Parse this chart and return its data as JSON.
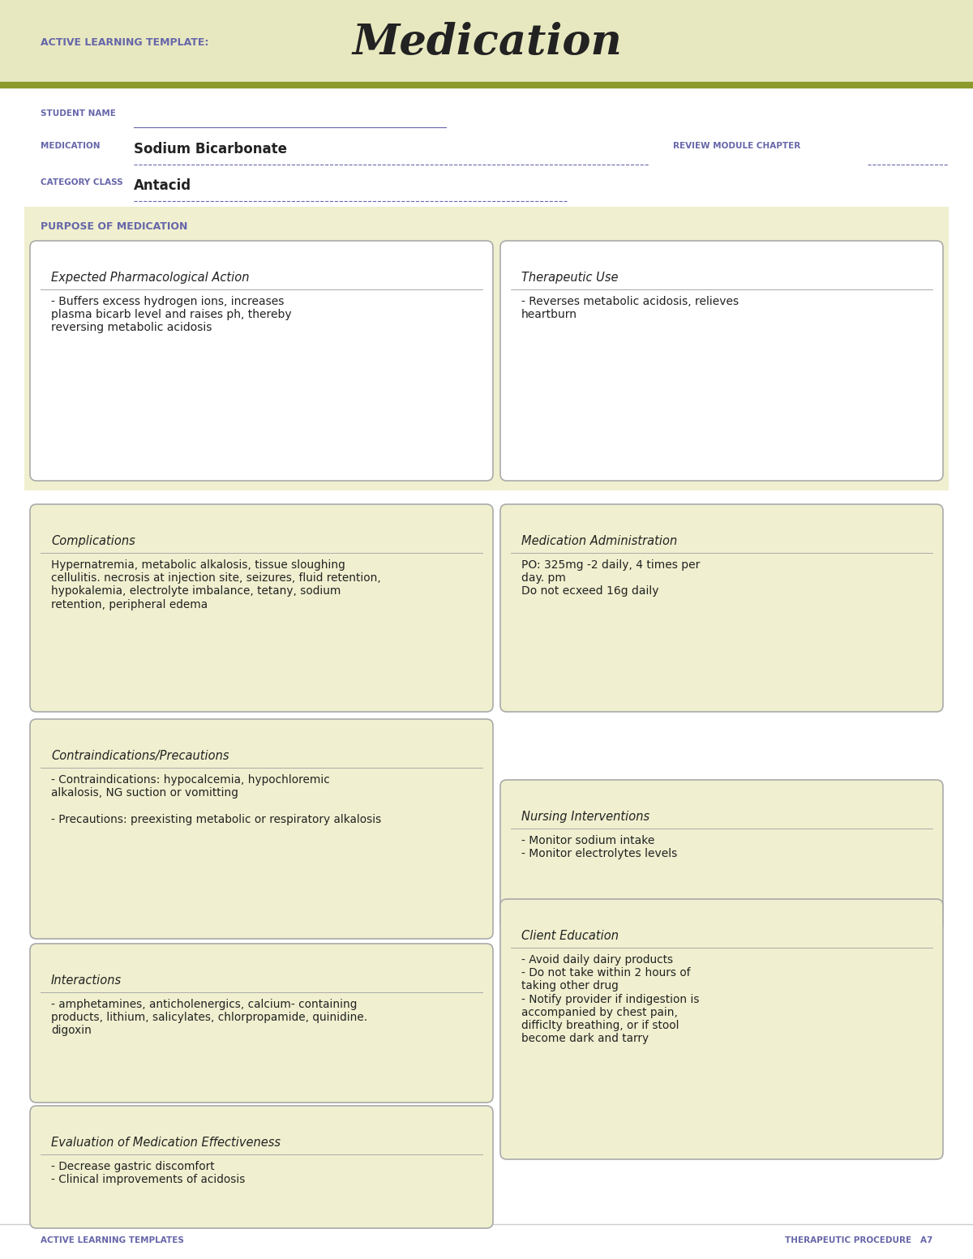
{
  "bg_color": "#f5f5dc",
  "white_bg": "#ffffff",
  "header_bg": "#e8e8c0",
  "box_bg": "#f0f0d0",
  "border_color": "#aaaaaa",
  "olive_line": "#8b9a2a",
  "title_label": "ACTIVE LEARNING TEMPLATE:",
  "title_main": "Medication",
  "label_color": "#6666aa",
  "text_color": "#222222",
  "student_name_label": "STUDENT NAME",
  "medication_label": "MEDICATION",
  "medication_value": "Sodium Bicarbonate",
  "review_label": "REVIEW MODULE CHAPTER",
  "category_label": "CATEGORY CLASS",
  "category_value": "Antacid",
  "purpose_label": "PURPOSE OF MEDICATION",
  "box1_title": "Expected Pharmacological Action",
  "box1_text": "- Buffers excess hydrogen ions, increases\nplasma bicarb level and raises ph, thereby\nreversing metabolic acidosis",
  "box2_title": "Therapeutic Use",
  "box2_text": "- Reverses metabolic acidosis, relieves\nheartburn",
  "box3_title": "Complications",
  "box3_text": "Hypernatremia, metabolic alkalosis, tissue sloughing\ncellulitis. necrosis at injection site, seizures, fluid retention,\nhypokalemia, electrolyte imbalance, tetany, sodium\nretention, peripheral edema",
  "box4_title": "Medication Administration",
  "box4_text": "PO: 325mg -2 daily, 4 times per\nday. pm\nDo not ecxeed 16g daily",
  "box5_title": "Contraindications/Precautions",
  "box5_text": "- Contraindications: hypocalcemia, hypochloremic\nalkalosis, NG suction or vomitting\n\n- Precautions: preexisting metabolic or respiratory alkalosis",
  "box6_title": "Nursing Interventions",
  "box6_text": "- Monitor sodium intake\n- Monitor electrolytes levels",
  "box7_title": "Interactions",
  "box7_text": "- amphetamines, anticholenergics, calcium- containing\nproducts, lithium, salicylates, chlorpropamide, quinidine.\ndigoxin",
  "box8_title": "Client Education",
  "box8_text": "- Avoid daily dairy products\n- Do not take within 2 hours of\ntaking other drug\n- Notify provider if indigestion is\naccompanied by chest pain,\ndifficlty breathing, or if stool\nbecome dark and tarry",
  "box9_title": "Evaluation of Medication Effectiveness",
  "box9_text": "- Decrease gastric discomfort\n- Clinical improvements of acidosis",
  "footer_left": "ACTIVE LEARNING TEMPLATES",
  "footer_right": "THERAPEUTIC PROCEDURE   A7"
}
